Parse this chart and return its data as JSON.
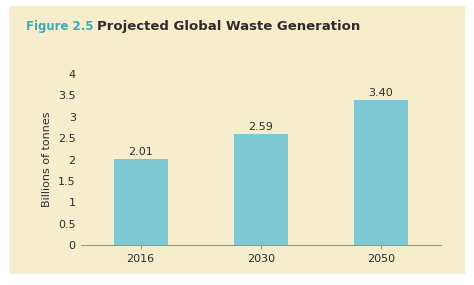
{
  "title_prefix": "Figure 2.5",
  "title_main": "Projected Global Waste Generation",
  "categories": [
    "2016",
    "2030",
    "2050"
  ],
  "values": [
    2.01,
    2.59,
    3.4
  ],
  "bar_color": "#7EC8D3",
  "ylabel": "Billions of tonnes",
  "ylim": [
    0,
    4.0
  ],
  "yticks": [
    0,
    0.5,
    1.0,
    1.5,
    2.0,
    2.5,
    3.0,
    3.5,
    4.0
  ],
  "background_color": "#F5EDCC",
  "outer_background": "#FFFFFF",
  "title_prefix_color": "#3AACB8",
  "title_main_color": "#2C2C2C",
  "label_color": "#2C2C2C",
  "bar_width": 0.45,
  "value_labels": [
    "2.01",
    "2.59",
    "3.40"
  ],
  "figure_label_fontsize": 8.5,
  "title_fontsize": 9.5,
  "tick_fontsize": 8,
  "ylabel_fontsize": 8,
  "value_label_fontsize": 8
}
